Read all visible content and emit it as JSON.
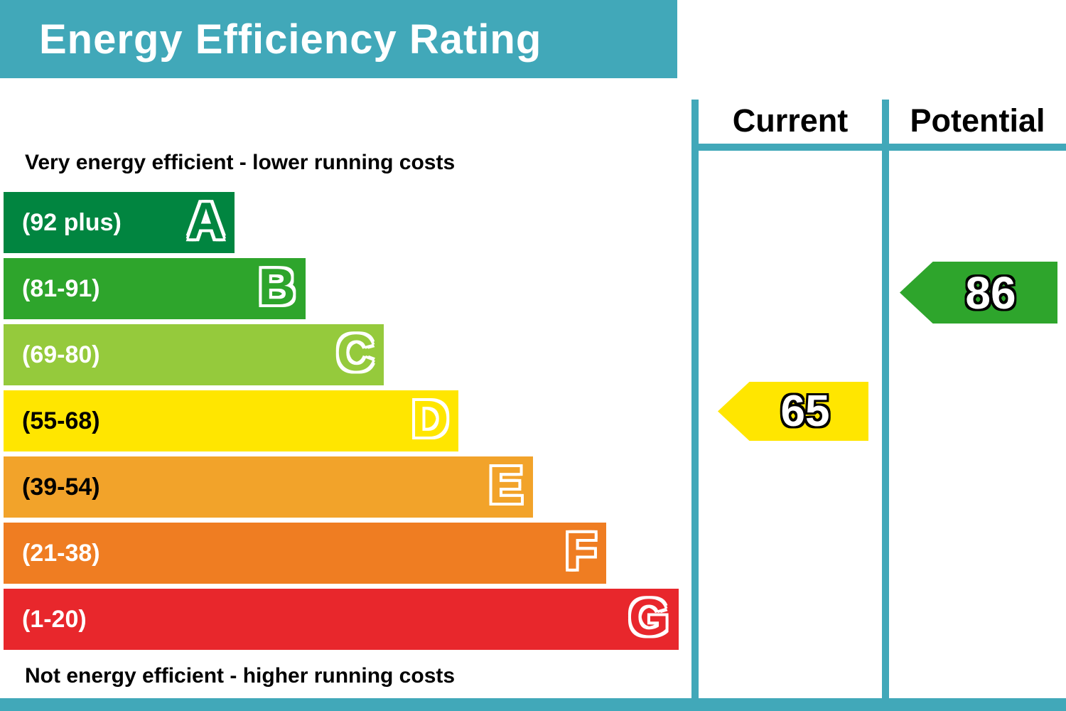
{
  "header": {
    "title": "Energy Efficiency Rating"
  },
  "labels": {
    "top": "Very energy efficient - lower running costs",
    "bottom": "Not energy efficient - higher running costs"
  },
  "columns": {
    "current_label": "Current",
    "potential_label": "Potential"
  },
  "colors": {
    "frame_teal": "#41a8b9"
  },
  "chart_data": {
    "type": "epc-energy-rating-bands",
    "title": "Energy Efficiency Rating",
    "bands": [
      {
        "letter": "A",
        "range": "(92 plus)",
        "min": 92,
        "max": 100,
        "color": "#018540",
        "text_color": "#ffffff",
        "width_pct": 34.2
      },
      {
        "letter": "B",
        "range": "(81-91)",
        "min": 81,
        "max": 91,
        "color": "#2ea52c",
        "text_color": "#ffffff",
        "width_pct": 44.7
      },
      {
        "letter": "C",
        "range": "(69-80)",
        "min": 69,
        "max": 80,
        "color": "#95ca3c",
        "text_color": "#ffffff",
        "width_pct": 56.3
      },
      {
        "letter": "D",
        "range": "(55-68)",
        "min": 55,
        "max": 68,
        "color": "#ffe600",
        "text_color": "#000000",
        "width_pct": 67.4
      },
      {
        "letter": "E",
        "range": "(39-54)",
        "min": 39,
        "max": 54,
        "color": "#f2a32a",
        "text_color": "#000000",
        "width_pct": 78.4
      },
      {
        "letter": "F",
        "range": "(21-38)",
        "min": 21,
        "max": 38,
        "color": "#ef7d22",
        "text_color": "#ffffff",
        "width_pct": 89.3
      },
      {
        "letter": "G",
        "range": "(1-20)",
        "min": 1,
        "max": 20,
        "color": "#e8272c",
        "text_color": "#ffffff",
        "width_pct": 100
      }
    ],
    "current": {
      "value": 65,
      "band": "D",
      "arrow_color": "#ffe600"
    },
    "potential": {
      "value": 86,
      "band": "B",
      "arrow_color": "#2ea52c"
    }
  }
}
